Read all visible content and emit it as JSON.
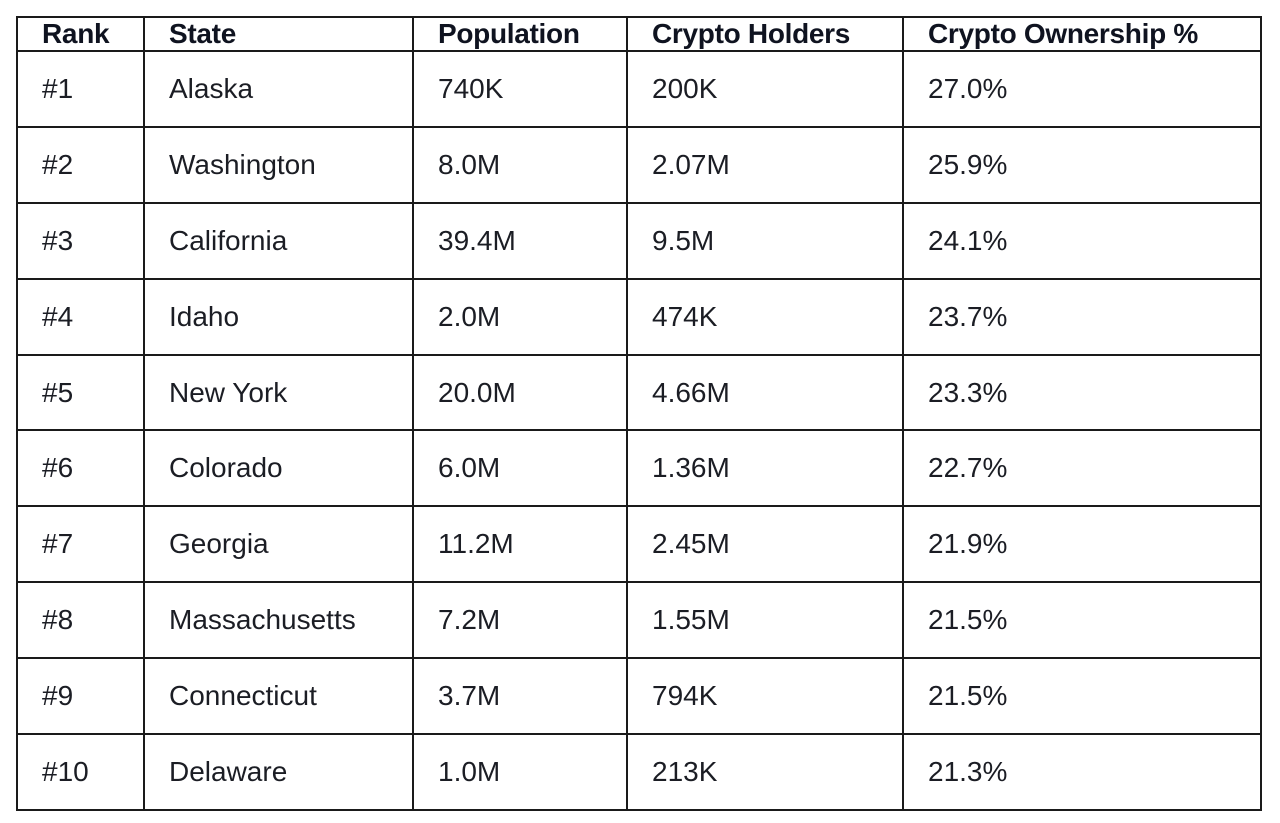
{
  "table": {
    "headers": {
      "rank": "Rank",
      "state": "State",
      "population": "Population",
      "crypto_holders": "Crypto Holders",
      "crypto_ownership": "Crypto Ownership %"
    },
    "rows": [
      {
        "rank": "#1",
        "state": "Alaska",
        "population": "740K",
        "crypto_holders": "200K",
        "crypto_ownership": "27.0%"
      },
      {
        "rank": "#2",
        "state": "Washington",
        "population": "8.0M",
        "crypto_holders": "2.07M",
        "crypto_ownership": "25.9%"
      },
      {
        "rank": "#3",
        "state": "California",
        "population": "39.4M",
        "crypto_holders": "9.5M",
        "crypto_ownership": "24.1%"
      },
      {
        "rank": "#4",
        "state": "Idaho",
        "population": "2.0M",
        "crypto_holders": "474K",
        "crypto_ownership": "23.7%"
      },
      {
        "rank": "#5",
        "state": "New York",
        "population": "20.0M",
        "crypto_holders": "4.66M",
        "crypto_ownership": "23.3%"
      },
      {
        "rank": "#6",
        "state": "Colorado",
        "population": "6.0M",
        "crypto_holders": "1.36M",
        "crypto_ownership": "22.7%"
      },
      {
        "rank": "#7",
        "state": "Georgia",
        "population": "11.2M",
        "crypto_holders": "2.45M",
        "crypto_ownership": "21.9%"
      },
      {
        "rank": "#8",
        "state": "Massachusetts",
        "population": "7.2M",
        "crypto_holders": "1.55M",
        "crypto_ownership": "21.5%"
      },
      {
        "rank": "#9",
        "state": "Connecticut",
        "population": "3.7M",
        "crypto_holders": "794K",
        "crypto_ownership": "21.5%"
      },
      {
        "rank": "#10",
        "state": "Delaware",
        "population": "1.0M",
        "crypto_holders": "213K",
        "crypto_ownership": "21.3%"
      }
    ]
  }
}
